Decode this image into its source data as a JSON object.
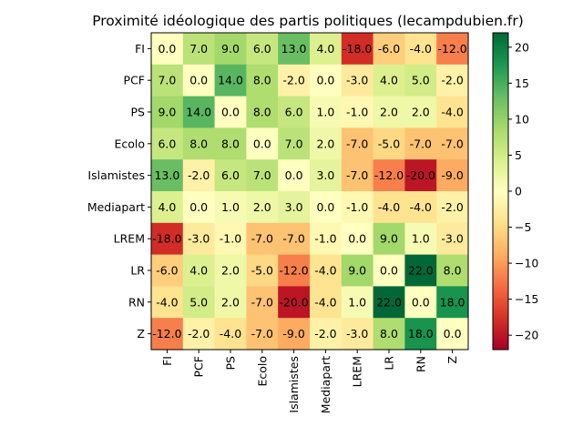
{
  "chart_data": {
    "type": "heatmap",
    "title": "Proximité idéologique des partis politiques (lecampdubien.fr)",
    "row_labels": [
      "FI",
      "PCF",
      "PS",
      "Ecolo",
      "Islamistes",
      "Mediapart",
      "LREM",
      "LR",
      "RN",
      "Z"
    ],
    "col_labels": [
      "FI",
      "PCF",
      "PS",
      "Ecolo",
      "Islamistes",
      "Mediapart",
      "LREM",
      "LR",
      "RN",
      "Z"
    ],
    "values": [
      [
        0.0,
        7.0,
        9.0,
        6.0,
        13.0,
        4.0,
        -18.0,
        -6.0,
        -4.0,
        -12.0
      ],
      [
        7.0,
        0.0,
        14.0,
        8.0,
        -2.0,
        0.0,
        -3.0,
        4.0,
        5.0,
        -2.0
      ],
      [
        9.0,
        14.0,
        0.0,
        8.0,
        6.0,
        1.0,
        -1.0,
        2.0,
        2.0,
        -4.0
      ],
      [
        6.0,
        8.0,
        8.0,
        0.0,
        7.0,
        2.0,
        -7.0,
        -5.0,
        -7.0,
        -7.0
      ],
      [
        13.0,
        -2.0,
        6.0,
        7.0,
        0.0,
        3.0,
        -7.0,
        -12.0,
        -20.0,
        -9.0
      ],
      [
        4.0,
        0.0,
        1.0,
        2.0,
        3.0,
        0.0,
        -1.0,
        -4.0,
        -4.0,
        -2.0
      ],
      [
        -18.0,
        -3.0,
        -1.0,
        -7.0,
        -7.0,
        -1.0,
        0.0,
        9.0,
        1.0,
        -3.0
      ],
      [
        -6.0,
        4.0,
        2.0,
        -5.0,
        -12.0,
        -4.0,
        9.0,
        0.0,
        22.0,
        8.0
      ],
      [
        -4.0,
        5.0,
        2.0,
        -7.0,
        -20.0,
        -4.0,
        1.0,
        22.0,
        0.0,
        18.0
      ],
      [
        -12.0,
        -2.0,
        -4.0,
        -7.0,
        -9.0,
        -2.0,
        -3.0,
        8.0,
        18.0,
        0.0
      ]
    ],
    "colormap": "RdYlGn",
    "vmin": -22,
    "vmax": 22,
    "colorbar_ticks": [
      20,
      15,
      10,
      5,
      0,
      -5,
      -10,
      -15,
      -20
    ],
    "colorbar_tick_labels": [
      "20",
      "15",
      "10",
      "5",
      "0",
      "−5",
      "−10",
      "−15",
      "−20"
    ]
  }
}
